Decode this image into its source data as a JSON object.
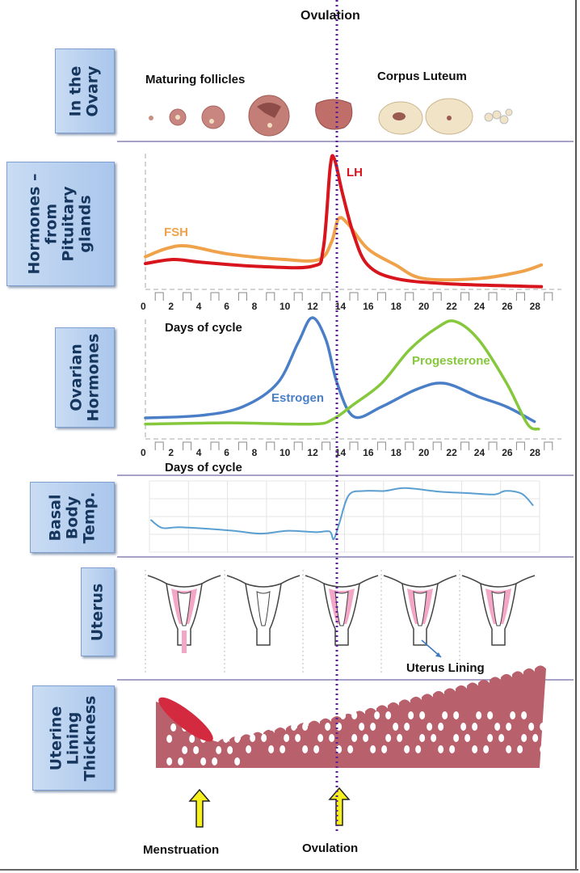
{
  "title": "Ovulation",
  "rows": {
    "ovary": {
      "label": "In the\nOvary",
      "follicles_label": "Maturing follicles",
      "corpus_label": "Corpus Luteum"
    },
    "pituitary": {
      "label": "Hormones –\nfrom\nPituitary\nglands"
    },
    "ovarian": {
      "label": "Ovarian\nHormones"
    },
    "bbt": {
      "label": "Basal\nBody\nTemp."
    },
    "uterus": {
      "label": "Uterus",
      "lining_label": "Uterus Lining"
    },
    "lining": {
      "label": "Uterine\nLining\nThickness"
    }
  },
  "axis": {
    "xlabel": "Days of cycle",
    "ticks": [
      "0",
      "2",
      "4",
      "6",
      "8",
      "10",
      "12",
      "14",
      "16",
      "18",
      "20",
      "22",
      "24",
      "26",
      "28"
    ]
  },
  "bottom": {
    "menstruation": "Menstruation",
    "ovulation": "Ovulation"
  },
  "colors": {
    "fsh": "#f0a24a",
    "lh": "#d8141c",
    "estrogen": "#4a7fc8",
    "progesterone": "#86c83c",
    "bbt": "#5a9fd0",
    "ovulation_line": "#5a1e96",
    "label_box": "#b7cfee",
    "lining": "#b8606c",
    "arrow": "#f5f01e"
  },
  "chart_data": [
    {
      "type": "line",
      "xlabel": "Days of cycle",
      "xlim": [
        0,
        28
      ],
      "series": [
        {
          "name": "FSH",
          "points": [
            [
              0,
              24
            ],
            [
              1.5,
              30
            ],
            [
              3,
              32
            ],
            [
              6,
              26
            ],
            [
              10,
              22
            ],
            [
              12.5,
              22
            ],
            [
              13.4,
              35
            ],
            [
              13.9,
              52
            ],
            [
              14.6,
              48
            ],
            [
              16,
              30
            ],
            [
              18,
              18
            ],
            [
              20,
              8
            ],
            [
              24,
              8
            ],
            [
              27,
              13
            ],
            [
              28.5,
              18
            ]
          ]
        },
        {
          "name": "LH",
          "points": [
            [
              0,
              19
            ],
            [
              2,
              22
            ],
            [
              4,
              20
            ],
            [
              8,
              17
            ],
            [
              12,
              17
            ],
            [
              12.8,
              30
            ],
            [
              13.3,
              90
            ],
            [
              13.6,
              96
            ],
            [
              14.2,
              70
            ],
            [
              15,
              40
            ],
            [
              16,
              18
            ],
            [
              18,
              8
            ],
            [
              22,
              4
            ],
            [
              28.5,
              2
            ]
          ]
        }
      ]
    },
    {
      "type": "line",
      "xlabel": "Days of cycle",
      "xlim": [
        0,
        28
      ],
      "series": [
        {
          "name": "Estrogen",
          "points": [
            [
              0,
              17
            ],
            [
              4,
              19
            ],
            [
              7,
              26
            ],
            [
              9.5,
              45
            ],
            [
              11,
              78
            ],
            [
              12,
              98
            ],
            [
              13,
              80
            ],
            [
              13.8,
              45
            ],
            [
              15,
              18
            ],
            [
              17,
              26
            ],
            [
              19.5,
              40
            ],
            [
              21.5,
              45
            ],
            [
              24,
              34
            ],
            [
              26,
              26
            ],
            [
              28,
              14
            ]
          ]
        },
        {
          "name": "Progesterone",
          "points": [
            [
              0,
              12
            ],
            [
              6,
              13
            ],
            [
              12,
              12
            ],
            [
              13.5,
              16
            ],
            [
              15,
              28
            ],
            [
              17,
              45
            ],
            [
              19,
              72
            ],
            [
              21,
              90
            ],
            [
              22.3,
              95
            ],
            [
              24,
              80
            ],
            [
              26,
              45
            ],
            [
              27.5,
              12
            ],
            [
              28.3,
              8
            ]
          ]
        }
      ]
    },
    {
      "type": "line",
      "xlabel": "",
      "xlim": [
        0,
        28
      ],
      "series": [
        {
          "points": [
            [
              0,
              45
            ],
            [
              0.8,
              34
            ],
            [
              2,
              35
            ],
            [
              4,
              33
            ],
            [
              6,
              30
            ],
            [
              8,
              26
            ],
            [
              10,
              30
            ],
            [
              12,
              28
            ],
            [
              13,
              29
            ],
            [
              13.3,
              18
            ],
            [
              13.7,
              40
            ],
            [
              14.4,
              80
            ],
            [
              15.5,
              86
            ],
            [
              17,
              86
            ],
            [
              18.5,
              90
            ],
            [
              21,
              85
            ],
            [
              23,
              83
            ],
            [
              25,
              81
            ],
            [
              25.8,
              86
            ],
            [
              27,
              82
            ],
            [
              27.8,
              66
            ]
          ]
        }
      ]
    }
  ]
}
